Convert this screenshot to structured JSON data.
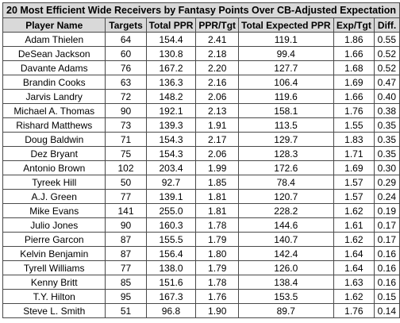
{
  "chart_data": {
    "type": "table",
    "title": "20 Most Efficient Wide Receivers by Fantasy Points Over CB-Adjusted Expectation",
    "columns": [
      "Player Name",
      "Targets",
      "Total PPR",
      "PPR/Tgt",
      "Total Expected PPR",
      "Exp/Tgt",
      "Diff."
    ],
    "rows": [
      [
        "Adam Thielen",
        "64",
        "154.4",
        "2.41",
        "119.1",
        "1.86",
        "0.55"
      ],
      [
        "DeSean Jackson",
        "60",
        "130.8",
        "2.18",
        "99.4",
        "1.66",
        "0.52"
      ],
      [
        "Davante Adams",
        "76",
        "167.2",
        "2.20",
        "127.7",
        "1.68",
        "0.52"
      ],
      [
        "Brandin Cooks",
        "63",
        "136.3",
        "2.16",
        "106.4",
        "1.69",
        "0.47"
      ],
      [
        "Jarvis Landry",
        "72",
        "148.2",
        "2.06",
        "119.6",
        "1.66",
        "0.40"
      ],
      [
        "Michael A. Thomas",
        "90",
        "192.1",
        "2.13",
        "158.1",
        "1.76",
        "0.38"
      ],
      [
        "Rishard Matthews",
        "73",
        "139.3",
        "1.91",
        "113.5",
        "1.55",
        "0.35"
      ],
      [
        "Doug Baldwin",
        "71",
        "154.3",
        "2.17",
        "129.7",
        "1.83",
        "0.35"
      ],
      [
        "Dez Bryant",
        "75",
        "154.3",
        "2.06",
        "128.3",
        "1.71",
        "0.35"
      ],
      [
        "Antonio Brown",
        "102",
        "203.4",
        "1.99",
        "172.6",
        "1.69",
        "0.30"
      ],
      [
        "Tyreek Hill",
        "50",
        "92.7",
        "1.85",
        "78.4",
        "1.57",
        "0.29"
      ],
      [
        "A.J. Green",
        "77",
        "139.1",
        "1.81",
        "120.7",
        "1.57",
        "0.24"
      ],
      [
        "Mike Evans",
        "141",
        "255.0",
        "1.81",
        "228.2",
        "1.62",
        "0.19"
      ],
      [
        "Julio Jones",
        "90",
        "160.3",
        "1.78",
        "144.6",
        "1.61",
        "0.17"
      ],
      [
        "Pierre Garcon",
        "87",
        "155.5",
        "1.79",
        "140.7",
        "1.62",
        "0.17"
      ],
      [
        "Kelvin Benjamin",
        "87",
        "156.4",
        "1.80",
        "142.4",
        "1.64",
        "0.16"
      ],
      [
        "Tyrell Williams",
        "77",
        "138.0",
        "1.79",
        "126.0",
        "1.64",
        "0.16"
      ],
      [
        "Kenny Britt",
        "85",
        "151.6",
        "1.78",
        "138.4",
        "1.63",
        "0.16"
      ],
      [
        "T.Y. Hilton",
        "95",
        "167.3",
        "1.76",
        "153.5",
        "1.62",
        "0.15"
      ],
      [
        "Steve L. Smith",
        "51",
        "96.8",
        "1.90",
        "89.7",
        "1.76",
        "0.14"
      ]
    ]
  }
}
